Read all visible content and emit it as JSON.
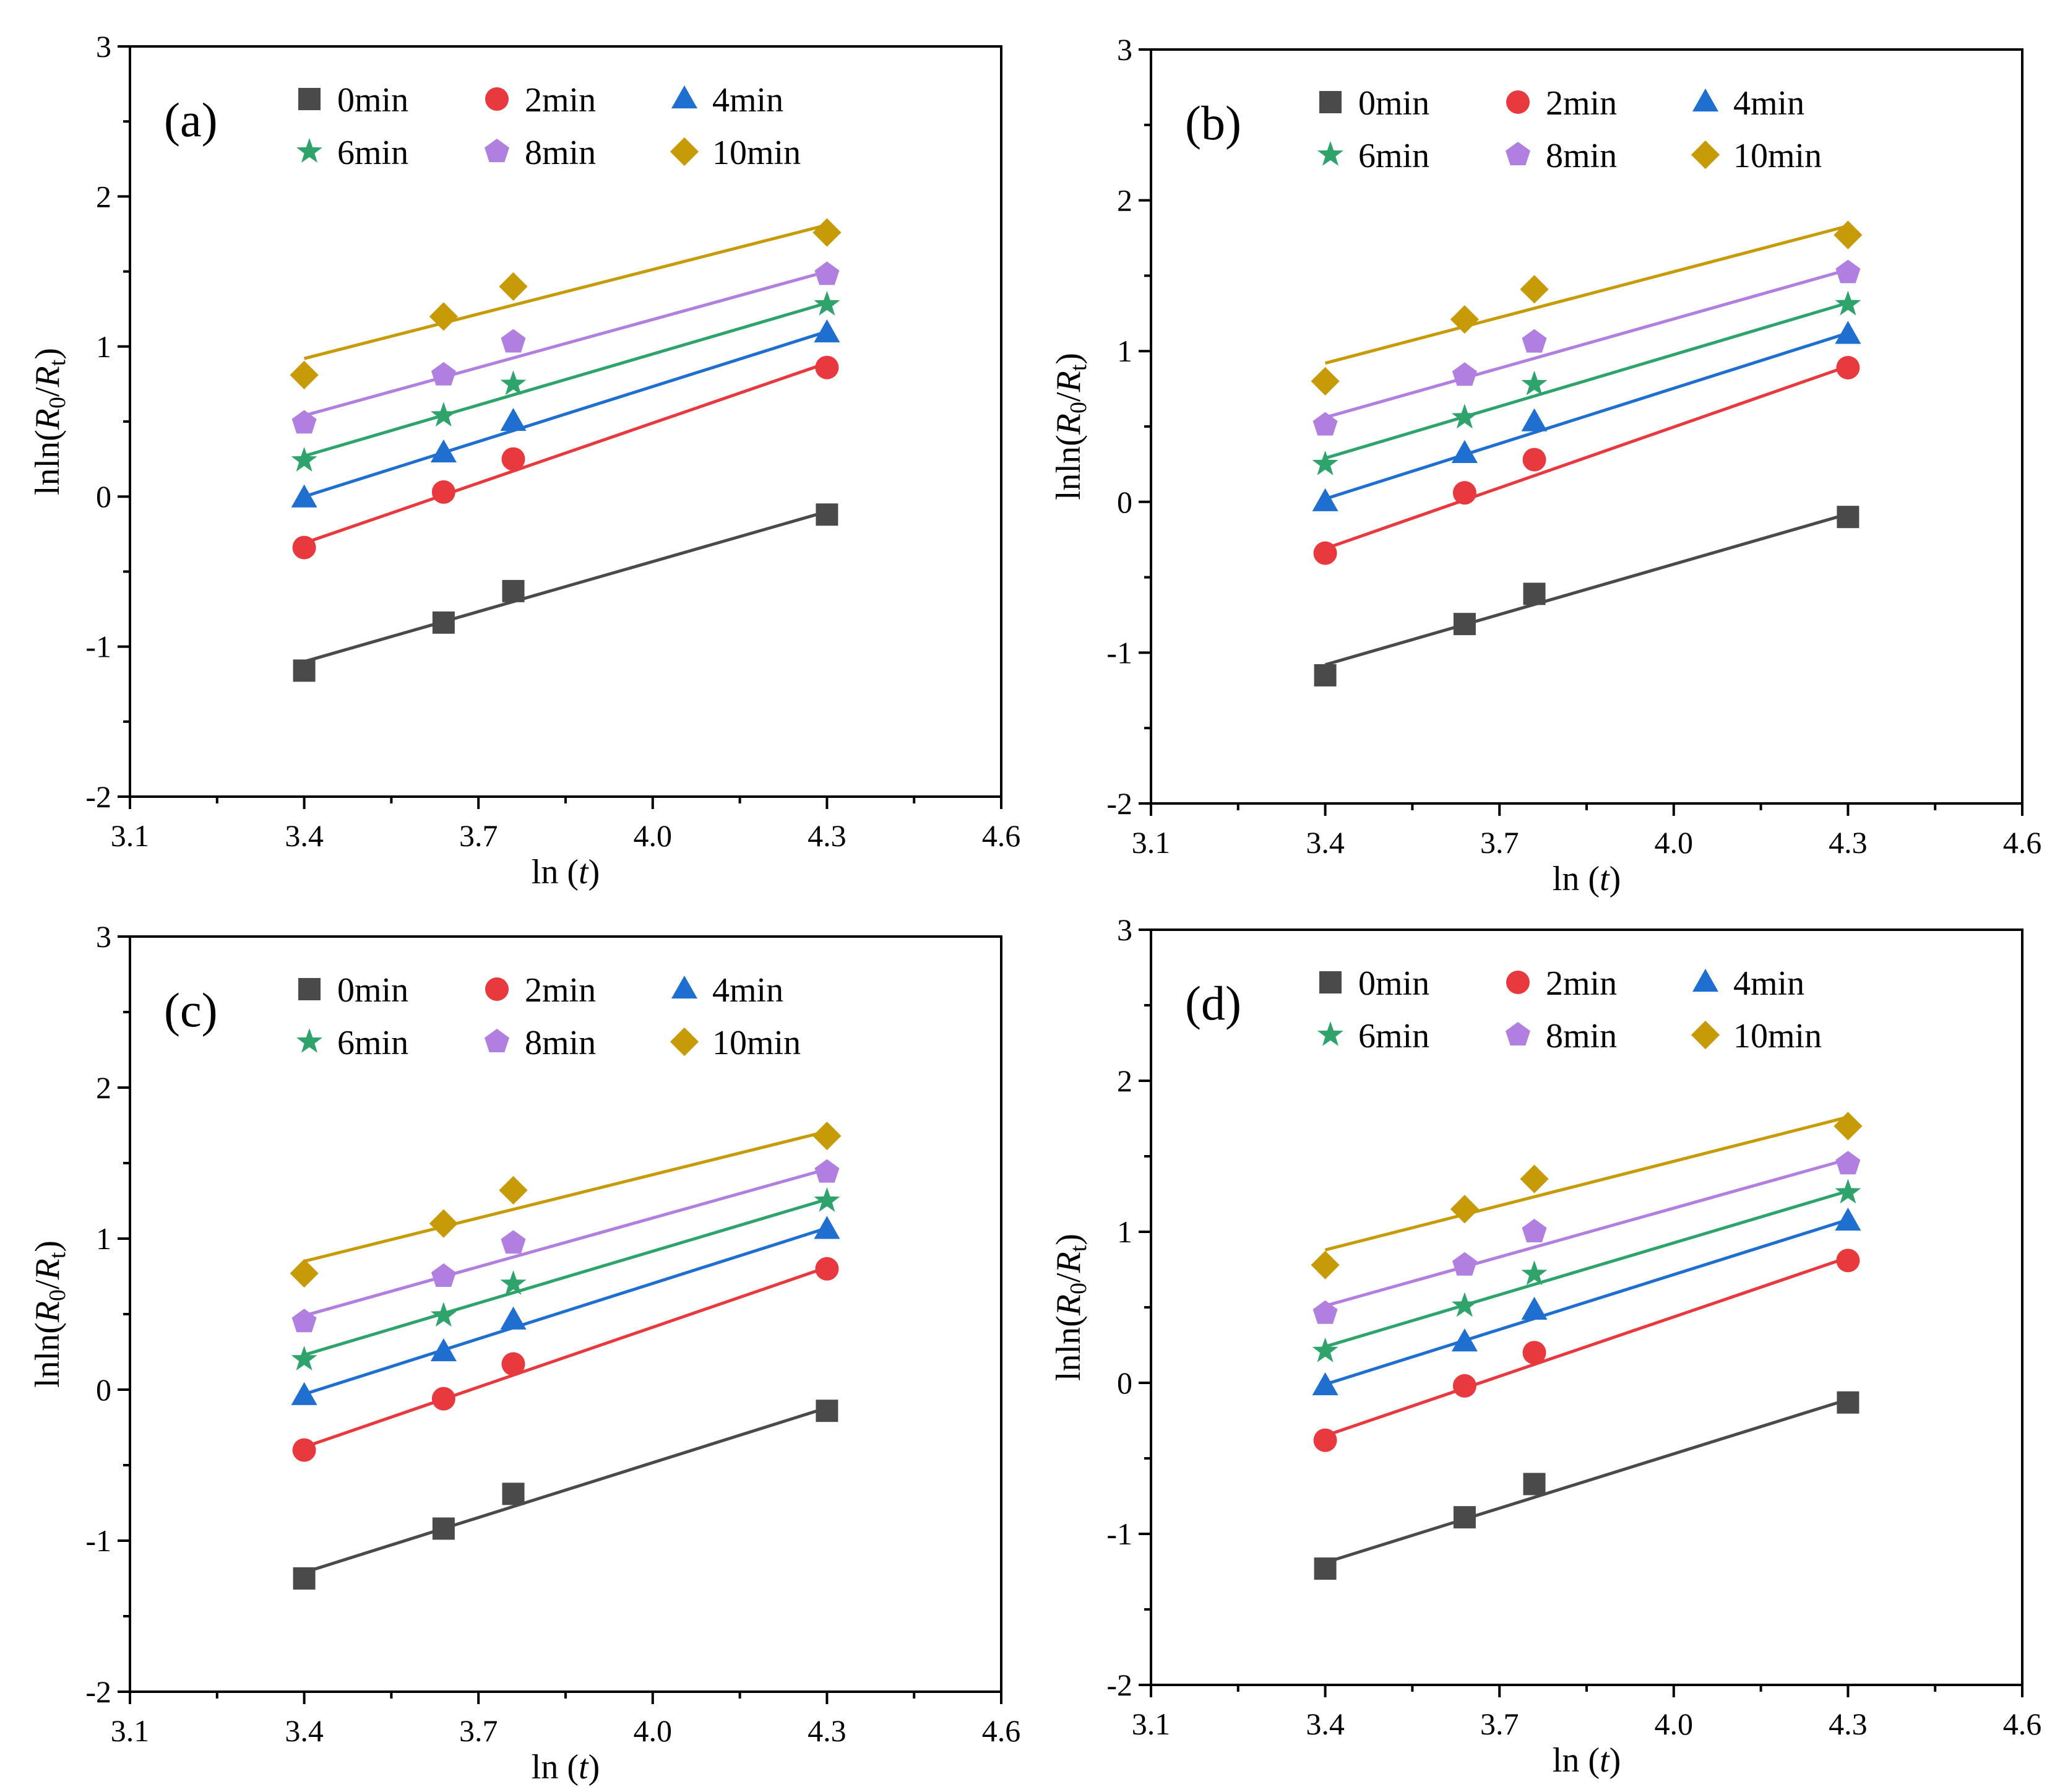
{
  "colors": {
    "0min": "#4a4a4a",
    "2min": "#e8393e",
    "4min": "#1f6fd1",
    "6min": "#2ea36b",
    "8min": "#b07fe0",
    "10min": "#c79a08"
  },
  "chart_data": [
    {
      "type": "scatter",
      "panel_label": "(a)",
      "xlabel_main": "ln (",
      "xlabel_var": "t",
      "xlabel_close": ")",
      "ylabel_prefix": "lnln(",
      "ylabel_num": "R",
      "ylabel_num_sub": "0",
      "ylabel_slash": "/",
      "ylabel_den": "R",
      "ylabel_den_sub": "t",
      "ylabel_close": ")",
      "xlim": [
        3.1,
        4.6
      ],
      "ylim": [
        -2,
        3
      ],
      "xticks": [
        "3.1",
        "3.4",
        "3.7",
        "4.0",
        "4.3",
        "4.6"
      ],
      "yticks": [
        "-2",
        "-1",
        "0",
        "1",
        "2",
        "3"
      ],
      "x": [
        3.4,
        3.64,
        3.76,
        4.3
      ],
      "legend_placement": "top-right",
      "series": [
        {
          "name": "0min",
          "marker": "square",
          "values": [
            -1.16,
            -0.84,
            -0.63,
            -0.12
          ],
          "fit": [
            -1.1,
            -0.1
          ]
        },
        {
          "name": "2min",
          "marker": "circle",
          "values": [
            -0.34,
            0.03,
            0.25,
            0.86
          ],
          "fit": [
            -0.31,
            0.89
          ]
        },
        {
          "name": "4min",
          "marker": "triangle",
          "values": [
            -0.01,
            0.29,
            0.5,
            1.09
          ],
          "fit": [
            0.0,
            1.1
          ]
        },
        {
          "name": "6min",
          "marker": "star",
          "values": [
            0.24,
            0.54,
            0.75,
            1.28
          ],
          "fit": [
            0.27,
            1.29
          ]
        },
        {
          "name": "8min",
          "marker": "pentagon",
          "values": [
            0.49,
            0.81,
            1.03,
            1.48
          ],
          "fit": [
            0.54,
            1.5
          ]
        },
        {
          "name": "10min",
          "marker": "diamond",
          "values": [
            0.81,
            1.2,
            1.4,
            1.76
          ],
          "fit": [
            0.92,
            1.81
          ]
        }
      ]
    },
    {
      "type": "scatter",
      "panel_label": "(b)",
      "xlabel_main": "ln (",
      "xlabel_var": "t",
      "xlabel_close": ")",
      "ylabel_prefix": "lnln(",
      "ylabel_num": "R",
      "ylabel_num_sub": "0",
      "ylabel_slash": "/",
      "ylabel_den": "R",
      "ylabel_den_sub": "t",
      "ylabel_close": ")",
      "xlim": [
        3.1,
        4.6
      ],
      "ylim": [
        -2,
        3
      ],
      "xticks": [
        "3.1",
        "3.4",
        "3.7",
        "4.0",
        "4.3",
        "4.6"
      ],
      "yticks": [
        "-2",
        "-1",
        "0",
        "1",
        "2",
        "3"
      ],
      "x": [
        3.4,
        3.64,
        3.76,
        4.3
      ],
      "legend_placement": "top-right",
      "series": [
        {
          "name": "0min",
          "marker": "square",
          "values": [
            -1.15,
            -0.81,
            -0.61,
            -0.1
          ],
          "fit": [
            -1.08,
            -0.08
          ]
        },
        {
          "name": "2min",
          "marker": "circle",
          "values": [
            -0.34,
            0.06,
            0.28,
            0.89
          ],
          "fit": [
            -0.31,
            0.9
          ]
        },
        {
          "name": "4min",
          "marker": "triangle",
          "values": [
            0.0,
            0.32,
            0.53,
            1.11
          ],
          "fit": [
            0.02,
            1.12
          ]
        },
        {
          "name": "6min",
          "marker": "star",
          "values": [
            0.25,
            0.56,
            0.78,
            1.31
          ],
          "fit": [
            0.29,
            1.32
          ]
        },
        {
          "name": "8min",
          "marker": "pentagon",
          "values": [
            0.51,
            0.84,
            1.06,
            1.52
          ],
          "fit": [
            0.56,
            1.54
          ]
        },
        {
          "name": "10min",
          "marker": "diamond",
          "values": [
            0.8,
            1.21,
            1.41,
            1.77
          ],
          "fit": [
            0.92,
            1.83
          ]
        }
      ]
    },
    {
      "type": "scatter",
      "panel_label": "(c)",
      "xlabel_main": "ln (",
      "xlabel_var": "t",
      "xlabel_close": ")",
      "ylabel_prefix": "lnln(",
      "ylabel_num": "R",
      "ylabel_num_sub": "0",
      "ylabel_slash": "/",
      "ylabel_den": "R",
      "ylabel_den_sub": "t",
      "ylabel_close": ")",
      "xlim": [
        3.1,
        4.6
      ],
      "ylim": [
        -2,
        3
      ],
      "xticks": [
        "3.1",
        "3.4",
        "3.7",
        "4.0",
        "4.3",
        "4.6"
      ],
      "yticks": [
        "-2",
        "-1",
        "0",
        "1",
        "2",
        "3"
      ],
      "x": [
        3.4,
        3.64,
        3.76,
        4.3
      ],
      "legend_placement": "top-right",
      "series": [
        {
          "name": "0min",
          "marker": "square",
          "values": [
            -1.25,
            -0.92,
            -0.69,
            -0.14
          ],
          "fit": [
            -1.21,
            -0.12
          ]
        },
        {
          "name": "2min",
          "marker": "circle",
          "values": [
            -0.4,
            -0.06,
            0.17,
            0.8
          ],
          "fit": [
            -0.38,
            0.81
          ]
        },
        {
          "name": "4min",
          "marker": "triangle",
          "values": [
            -0.04,
            0.25,
            0.46,
            1.06
          ],
          "fit": [
            -0.03,
            1.07
          ]
        },
        {
          "name": "6min",
          "marker": "star",
          "values": [
            0.2,
            0.49,
            0.7,
            1.25
          ],
          "fit": [
            0.23,
            1.26
          ]
        },
        {
          "name": "8min",
          "marker": "pentagon",
          "values": [
            0.45,
            0.75,
            0.97,
            1.44
          ],
          "fit": [
            0.49,
            1.46
          ]
        },
        {
          "name": "10min",
          "marker": "diamond",
          "values": [
            0.77,
            1.1,
            1.32,
            1.68
          ],
          "fit": [
            0.85,
            1.71
          ]
        }
      ]
    },
    {
      "type": "scatter",
      "panel_label": "(d)",
      "xlabel_main": "ln (",
      "xlabel_var": "t",
      "xlabel_close": ")",
      "ylabel_prefix": "lnln(",
      "ylabel_num": "R",
      "ylabel_num_sub": "0",
      "ylabel_slash": "/",
      "ylabel_den": "R",
      "ylabel_den_sub": "t",
      "ylabel_close": ")",
      "xlim": [
        3.1,
        4.6
      ],
      "ylim": [
        -2,
        3
      ],
      "xticks": [
        "3.1",
        "3.4",
        "3.7",
        "4.0",
        "4.3",
        "4.6"
      ],
      "yticks": [
        "-2",
        "-1",
        "0",
        "1",
        "2",
        "3"
      ],
      "x": [
        3.4,
        3.64,
        3.76,
        4.3
      ],
      "legend_placement": "top-right",
      "series": [
        {
          "name": "0min",
          "marker": "square",
          "values": [
            -1.23,
            -0.89,
            -0.67,
            -0.13
          ],
          "fit": [
            -1.19,
            -0.11
          ]
        },
        {
          "name": "2min",
          "marker": "circle",
          "values": [
            -0.38,
            -0.02,
            0.2,
            0.81
          ],
          "fit": [
            -0.35,
            0.83
          ]
        },
        {
          "name": "4min",
          "marker": "triangle",
          "values": [
            -0.02,
            0.27,
            0.48,
            1.07
          ],
          "fit": [
            -0.01,
            1.08
          ]
        },
        {
          "name": "6min",
          "marker": "star",
          "values": [
            0.21,
            0.51,
            0.72,
            1.26
          ],
          "fit": [
            0.24,
            1.27
          ]
        },
        {
          "name": "8min",
          "marker": "pentagon",
          "values": [
            0.46,
            0.78,
            1.0,
            1.45
          ],
          "fit": [
            0.51,
            1.48
          ]
        },
        {
          "name": "10min",
          "marker": "diamond",
          "values": [
            0.78,
            1.15,
            1.35,
            1.7
          ],
          "fit": [
            0.88,
            1.76
          ]
        }
      ]
    }
  ]
}
